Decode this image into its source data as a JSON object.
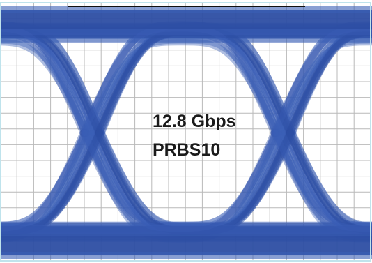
{
  "chart_data": {
    "type": "eye-diagram",
    "annotations": [
      "12.8 Gbps",
      "PRBS10"
    ],
    "grid": true,
    "colors": {
      "trace": "#3b5fb6",
      "trace_dark": "#2d4ea3",
      "grid": "#b9b9b9",
      "border": "#bfe3ec",
      "background": "#ffffff"
    },
    "eyes_visible": 2,
    "crossings_visible": 2
  }
}
